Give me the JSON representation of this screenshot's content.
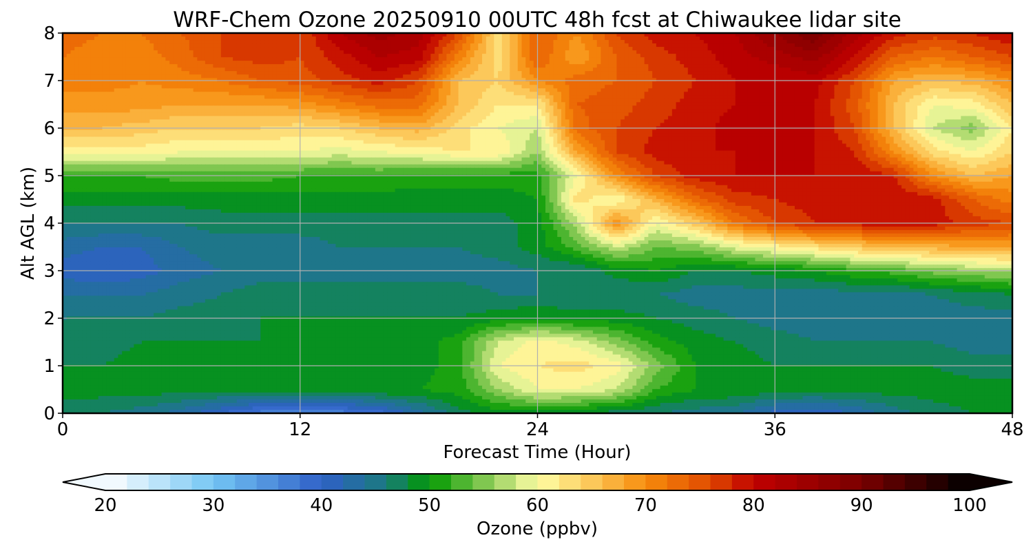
{
  "chart_data": {
    "type": "heatmap",
    "title": "WRF-Chem Ozone  20250910 00UTC 48h fcst at Chiwaukee lidar site",
    "xlabel": "Forecast Time (Hour)",
    "ylabel": "Alt AGL (km)",
    "xlim": [
      0,
      48
    ],
    "ylim": [
      0,
      8
    ],
    "x_ticks": [
      0,
      12,
      24,
      36,
      48
    ],
    "y_ticks": [
      0,
      1,
      2,
      3,
      4,
      5,
      6,
      7,
      8
    ],
    "grid": true,
    "x": [
      0,
      2,
      4,
      6,
      8,
      10,
      12,
      14,
      16,
      18,
      20,
      22,
      24,
      26,
      28,
      30,
      32,
      34,
      36,
      38,
      40,
      42,
      44,
      46,
      48
    ],
    "y": [
      0,
      0.5,
      1,
      1.5,
      2,
      2.5,
      3,
      3.5,
      4,
      4.5,
      5,
      5.5,
      6,
      6.5,
      7,
      7.5,
      8
    ],
    "z": [
      [
        47,
        46,
        45,
        43,
        40,
        37,
        36,
        37,
        39,
        43,
        47,
        49,
        49,
        48,
        47,
        46,
        45,
        44,
        41,
        40,
        42,
        45,
        47,
        48,
        48
      ],
      [
        49,
        49,
        49,
        49,
        49,
        49,
        49,
        49,
        50,
        50,
        51,
        56,
        60,
        60,
        58,
        52,
        50,
        50,
        49,
        49,
        49,
        49,
        49,
        49,
        49
      ],
      [
        48,
        48,
        49,
        49,
        49,
        49,
        49,
        49,
        49,
        49,
        51,
        60,
        62,
        63,
        61,
        55,
        50,
        49,
        48,
        48,
        48,
        48,
        48,
        47,
        47
      ],
      [
        47,
        47,
        48,
        48,
        48,
        48,
        48,
        48,
        48,
        49,
        51,
        58,
        61,
        59,
        55,
        51,
        49,
        48,
        47,
        46,
        46,
        46,
        46,
        45,
        45
      ],
      [
        46,
        46,
        46,
        47,
        47,
        48,
        48,
        48,
        48,
        48,
        48,
        49,
        50,
        49,
        49,
        48,
        47,
        46,
        45,
        45,
        45,
        45,
        45,
        45,
        45
      ],
      [
        44,
        44,
        44,
        45,
        46,
        47,
        47,
        47,
        47,
        47,
        47,
        46,
        46,
        46,
        46,
        46,
        45,
        45,
        45,
        45,
        45,
        45,
        46,
        47,
        48
      ],
      [
        41,
        40,
        41,
        43,
        44,
        45,
        45,
        45,
        45,
        45,
        45,
        45,
        46,
        46,
        49,
        50,
        48,
        48,
        49,
        50,
        52,
        53,
        55,
        56,
        57
      ],
      [
        43,
        42,
        42,
        44,
        45,
        45,
        45,
        46,
        46,
        46,
        46,
        47,
        49,
        53,
        58,
        54,
        55,
        59,
        61,
        63,
        65,
        66,
        67,
        68,
        68
      ],
      [
        46,
        46,
        46,
        46,
        47,
        47,
        47,
        47,
        47,
        47,
        47,
        47,
        49,
        57,
        70,
        60,
        65,
        72,
        76,
        78,
        79,
        79,
        79,
        77,
        76
      ],
      [
        49,
        49,
        49,
        49,
        49,
        49,
        49,
        49,
        49,
        49,
        49,
        49,
        50,
        63,
        60,
        67,
        73,
        77,
        78,
        79,
        80,
        80,
        79,
        74,
        71
      ],
      [
        52,
        52,
        52,
        53,
        53,
        53,
        52,
        52,
        52,
        51,
        51,
        51,
        51,
        60,
        70,
        76,
        79,
        80,
        80,
        80,
        80,
        78,
        70,
        66,
        68
      ],
      [
        61,
        61,
        61,
        60,
        60,
        60,
        60,
        59,
        60,
        61,
        62,
        62,
        56,
        68,
        76,
        79,
        80,
        80,
        80,
        80,
        78,
        70,
        63,
        60,
        64
      ],
      [
        66,
        66,
        65,
        64,
        64,
        64,
        63,
        64,
        66,
        67,
        63,
        60,
        58,
        73,
        76,
        78,
        79,
        81,
        80,
        80,
        76,
        66,
        58,
        55,
        62
      ],
      [
        69,
        69,
        69,
        68,
        68,
        68,
        69,
        71,
        73,
        73,
        66,
        62,
        62,
        74,
        75,
        77,
        79,
        80,
        80,
        80,
        75,
        66,
        60,
        61,
        66
      ],
      [
        71,
        71,
        70,
        71,
        72,
        74,
        75,
        77,
        79,
        76,
        66,
        64,
        70,
        73,
        74,
        76,
        78,
        80,
        80,
        81,
        76,
        68,
        66,
        67,
        70
      ],
      [
        72,
        71,
        71,
        73,
        76,
        77,
        76,
        79,
        82,
        81,
        71,
        63,
        74,
        68,
        74,
        77,
        79,
        81,
        83,
        85,
        80,
        74,
        72,
        74,
        76
      ],
      [
        73,
        72,
        72,
        74,
        76,
        76,
        76,
        82,
        85,
        83,
        76,
        63,
        74,
        70,
        76,
        79,
        80,
        82,
        86,
        90,
        83,
        79,
        77,
        78,
        80
      ]
    ],
    "colorbar": {
      "label": "Ozone  (ppbv)",
      "min": 20,
      "max": 100,
      "step": 2,
      "ticks": [
        20,
        30,
        40,
        50,
        60,
        70,
        80,
        90,
        100
      ],
      "extend": "both",
      "anchors": [
        {
          "v": 20,
          "c": "#ffffff"
        },
        {
          "v": 30,
          "c": "#74c6f4"
        },
        {
          "v": 40,
          "c": "#2f60c8"
        },
        {
          "v": 46,
          "c": "#1a7a7e"
        },
        {
          "v": 50,
          "c": "#009900"
        },
        {
          "v": 56,
          "c": "#99d060"
        },
        {
          "v": 60,
          "c": "#ffffa6"
        },
        {
          "v": 65,
          "c": "#fcc85a"
        },
        {
          "v": 70,
          "c": "#f78c0c"
        },
        {
          "v": 76,
          "c": "#e04a00"
        },
        {
          "v": 80,
          "c": "#c00000"
        },
        {
          "v": 90,
          "c": "#7a0000"
        },
        {
          "v": 100,
          "c": "#000000"
        }
      ]
    }
  }
}
